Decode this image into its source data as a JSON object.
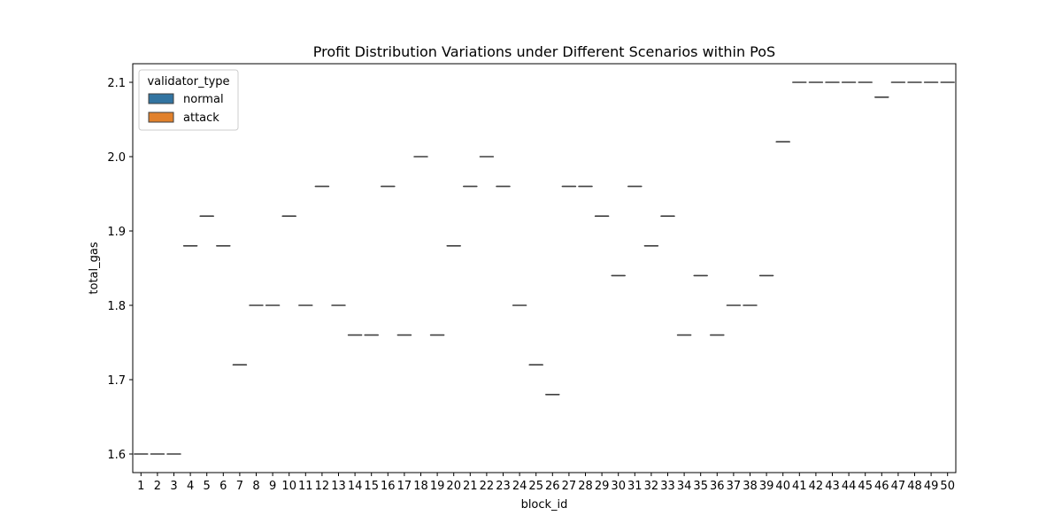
{
  "chart_data": {
    "type": "box",
    "title": "Profit Distribution Variations under Different Scenarios within PoS",
    "xlabel": "block_id",
    "ylabel": "total_gas",
    "ylim": [
      1.575,
      2.125
    ],
    "yticks": [
      "1.6",
      "1.7",
      "1.8",
      "1.9",
      "2.0",
      "2.1"
    ],
    "categories": [
      "1",
      "2",
      "3",
      "4",
      "5",
      "6",
      "7",
      "8",
      "9",
      "10",
      "11",
      "12",
      "13",
      "14",
      "15",
      "16",
      "17",
      "18",
      "19",
      "20",
      "21",
      "22",
      "23",
      "24",
      "25",
      "26",
      "27",
      "28",
      "29",
      "30",
      "31",
      "32",
      "33",
      "34",
      "35",
      "36",
      "37",
      "38",
      "39",
      "40",
      "41",
      "42",
      "43",
      "44",
      "45",
      "46",
      "47",
      "48",
      "49",
      "50"
    ],
    "series": [
      {
        "name": "normal",
        "color": "#3274a1",
        "values": [
          1.6,
          1.6,
          1.6,
          1.88,
          1.92,
          1.88,
          1.72,
          1.8,
          1.8,
          1.92,
          1.8,
          1.96,
          1.8,
          1.76,
          1.76,
          1.96,
          1.76,
          2.0,
          1.76,
          1.88,
          1.96,
          2.0,
          1.96,
          1.8,
          1.72,
          1.68,
          1.96,
          1.96,
          1.92,
          1.84,
          1.96,
          1.88,
          1.92,
          1.76,
          1.84,
          1.76,
          1.8,
          1.8,
          1.84,
          2.02,
          2.1,
          2.1,
          2.1,
          2.1,
          2.1,
          2.08,
          2.1,
          2.1,
          2.1,
          2.1
        ]
      },
      {
        "name": "attack",
        "color": "#e1812c",
        "values": []
      }
    ],
    "legend": {
      "title": "validator_type",
      "placement": "top-left"
    },
    "grid": false
  }
}
